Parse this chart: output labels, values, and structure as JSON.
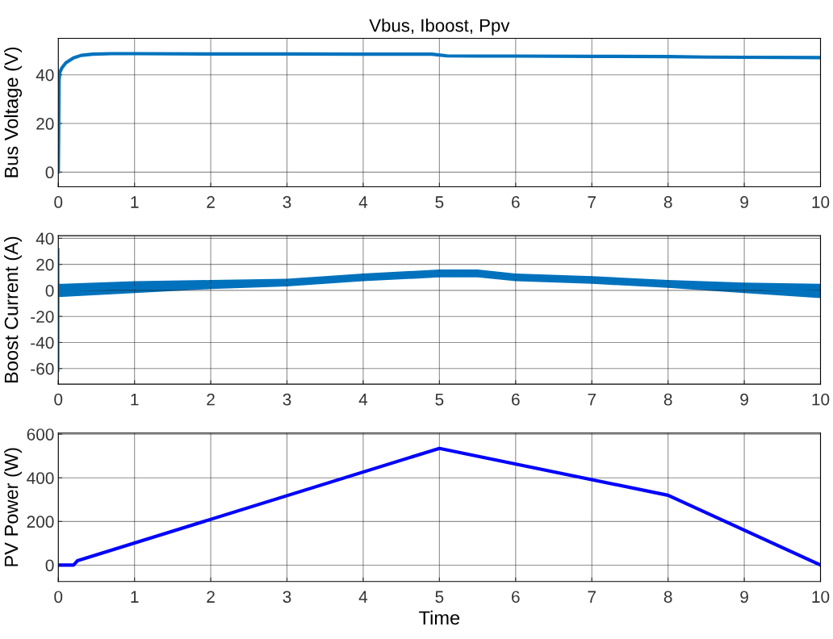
{
  "chart_data": [
    {
      "type": "line",
      "title": "Vbus, Iboost, Ppv",
      "ylabel": "Bus Voltage (V)",
      "xlim": [
        0,
        10
      ],
      "xticks": [
        0,
        1,
        2,
        3,
        4,
        5,
        6,
        7,
        8,
        9,
        10
      ],
      "ylim": [
        -6,
        55
      ],
      "yticks": [
        0,
        20,
        40
      ],
      "grid": true,
      "series": [
        {
          "color": "#0072bd",
          "x": [
            0,
            0.01,
            0.02,
            0.05,
            0.1,
            0.2,
            0.3,
            0.45,
            0.7,
            1,
            2,
            3,
            4,
            4.9,
            5.1,
            5.5,
            6,
            7,
            8,
            8.5,
            9,
            10
          ],
          "values": [
            0,
            38,
            41,
            43,
            45,
            47,
            48,
            48.5,
            48.7,
            48.7,
            48.6,
            48.6,
            48.5,
            48.5,
            47.8,
            47.7,
            47.7,
            47.6,
            47.5,
            47.3,
            47.2,
            47.1
          ]
        }
      ]
    },
    {
      "type": "line",
      "ylabel": "Boost Current (A)",
      "xlim": [
        0,
        10
      ],
      "xticks": [
        0,
        1,
        2,
        3,
        4,
        5,
        6,
        7,
        8,
        9,
        10
      ],
      "ylim": [
        -72,
        42
      ],
      "yticks": [
        -60,
        -40,
        -20,
        0,
        20,
        40
      ],
      "grid": true,
      "series": [
        {
          "color": "#0072bd",
          "x": [
            0,
            0,
            0,
            0.05,
            1,
            2,
            3,
            4,
            5,
            5.5,
            6,
            7,
            8,
            9,
            10
          ],
          "values": [
            -62,
            32,
            0,
            0,
            2,
            4,
            6,
            10,
            13,
            13,
            10,
            8,
            5,
            2,
            -1
          ],
          "lower": [
            -62,
            32,
            -5,
            -5,
            -2,
            1,
            3,
            7,
            10,
            10,
            7,
            5,
            2,
            -2,
            -6
          ],
          "upper": [
            -62,
            32,
            5,
            5,
            7,
            8,
            9,
            13,
            16,
            16,
            13,
            11,
            8,
            6,
            5
          ]
        }
      ]
    },
    {
      "type": "line",
      "ylabel": "PV Power (W)",
      "xlabel": "Time",
      "xlim": [
        0,
        10
      ],
      "xticks": [
        0,
        1,
        2,
        3,
        4,
        5,
        6,
        7,
        8,
        9,
        10
      ],
      "ylim": [
        -75,
        605
      ],
      "yticks": [
        0,
        200,
        400,
        600
      ],
      "grid": true,
      "series": [
        {
          "color": "#0000ff",
          "x": [
            0,
            0.2,
            0.25,
            5,
            8,
            10
          ],
          "values": [
            0,
            0,
            20,
            535,
            320,
            0
          ]
        }
      ]
    }
  ]
}
